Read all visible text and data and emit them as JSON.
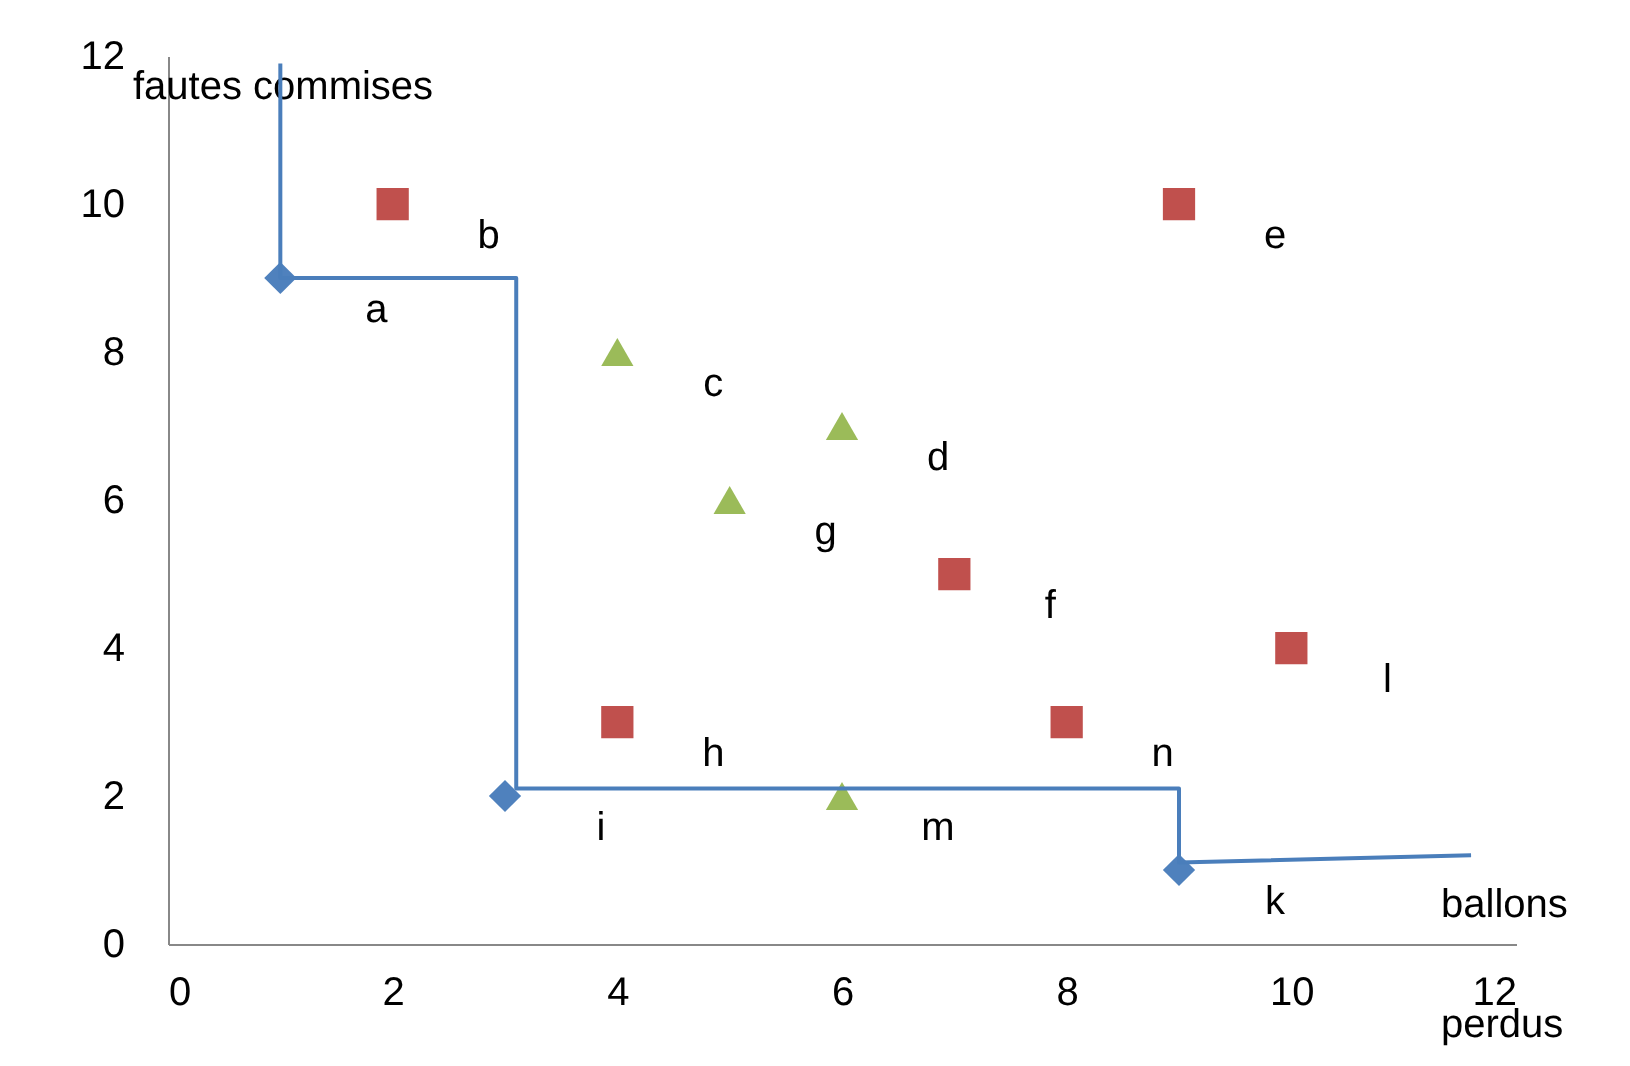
{
  "chart_data": {
    "type": "scatter",
    "xlabel": "ballons perdus",
    "ylabel": "fautes commises",
    "xlim": [
      0,
      12
    ],
    "ylim": [
      0,
      12
    ],
    "xticks": [
      0,
      2,
      4,
      6,
      8,
      10,
      12
    ],
    "yticks": [
      0,
      2,
      4,
      6,
      8,
      10,
      12
    ],
    "grid": false,
    "series": [
      {
        "marker": "diamond",
        "color": "#4f81bd",
        "x": [
          1,
          3,
          9
        ],
        "values": [
          9,
          2,
          1
        ]
      },
      {
        "marker": "square",
        "color": "#c0504d",
        "x": [
          2,
          4,
          7,
          9,
          8,
          10
        ],
        "values": [
          10,
          3,
          5,
          10,
          3,
          4
        ]
      },
      {
        "marker": "triangle",
        "color": "#9bbb59",
        "x": [
          4,
          6,
          5,
          6
        ],
        "values": [
          8,
          7,
          6,
          2
        ]
      },
      {
        "type": "line",
        "marker": "none",
        "line_style": "solid",
        "color": "#4a7ebb",
        "x": [
          1,
          1,
          3.1,
          3.1,
          9,
          9,
          11.6
        ],
        "values": [
          11.9,
          9,
          9,
          2.1,
          2.1,
          1.1,
          1.2
        ]
      }
    ],
    "annotations": [
      {
        "text": "a",
        "x": 1,
        "y": 9
      },
      {
        "text": "b",
        "x": 2,
        "y": 10
      },
      {
        "text": "c",
        "x": 4,
        "y": 8
      },
      {
        "text": "d",
        "x": 6,
        "y": 7
      },
      {
        "text": "e",
        "x": 9,
        "y": 10
      },
      {
        "text": "f",
        "x": 7,
        "y": 5
      },
      {
        "text": "g",
        "x": 5,
        "y": 6
      },
      {
        "text": "h",
        "x": 4,
        "y": 3
      },
      {
        "text": "i",
        "x": 3,
        "y": 2
      },
      {
        "text": "k",
        "x": 9,
        "y": 1
      },
      {
        "text": "l",
        "x": 10,
        "y": 4
      },
      {
        "text": "m",
        "x": 6,
        "y": 2
      },
      {
        "text": "n",
        "x": 8,
        "y": 3
      }
    ]
  }
}
